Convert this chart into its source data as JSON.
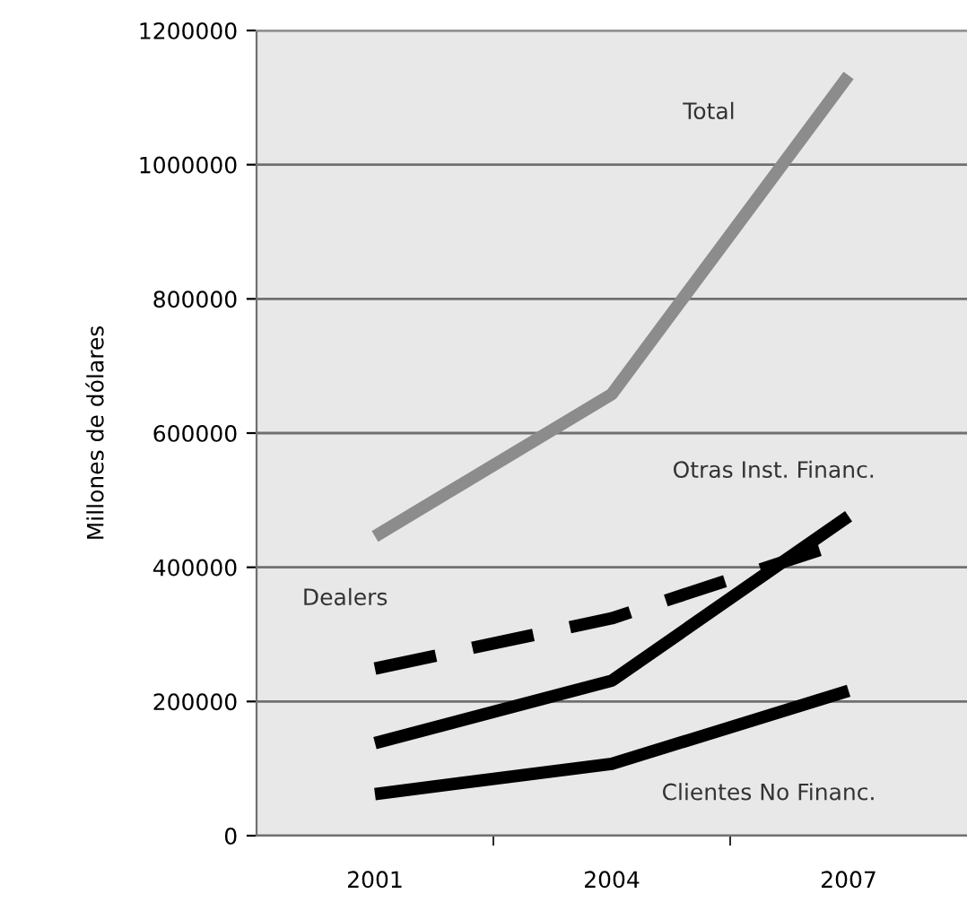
{
  "chart_data": {
    "type": "line",
    "ylabel": "Millones de dólares",
    "categories": [
      "2001",
      "2004",
      "2007"
    ],
    "series": [
      {
        "name": "Total",
        "color": "#8c8c8c",
        "values": [
          446000,
          658000,
          1133000
        ],
        "line_style": "solid"
      },
      {
        "name": "Dealers",
        "color": "#000000",
        "values": [
          249000,
          324000,
          440000
        ],
        "line_style": "dashed"
      },
      {
        "name": "Otras Inst. Financ.",
        "color": "#000000",
        "values": [
          138000,
          231000,
          476000
        ],
        "line_style": "solid"
      },
      {
        "name": "Clientes No Financ.",
        "color": "#000000",
        "values": [
          62000,
          107000,
          216000
        ],
        "line_style": "solid"
      }
    ],
    "ylim": [
      0,
      1200000
    ],
    "yticks": [
      0,
      200000,
      400000,
      600000,
      800000,
      1000000,
      1200000
    ],
    "grid": "y",
    "legend": false,
    "marker": "none"
  }
}
